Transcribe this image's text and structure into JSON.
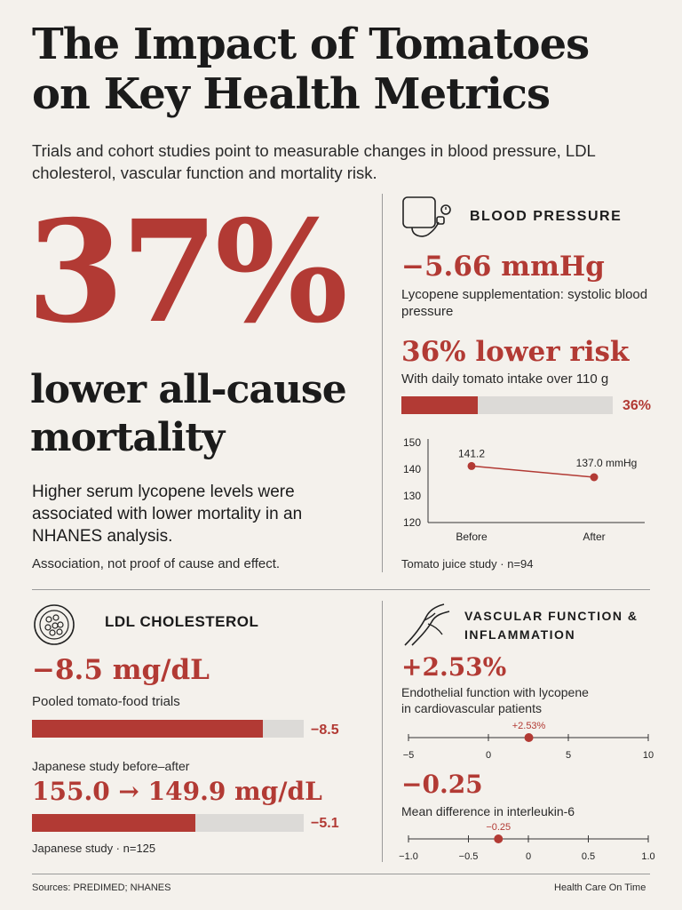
{
  "header": {
    "title_line1": "The Impact of Tomatoes",
    "title_line2": "on Key Health Metrics",
    "subtitle": "Trials and cohort studies point to measurable changes in blood pressure, LDL cholesterol, vascular function and mortality risk."
  },
  "mortality": {
    "big_value": "37%",
    "headline_line1": "lower all-cause",
    "headline_line2": "mortality",
    "description": "Higher serum lycopene levels were associated with lower mortality in an NHANES analysis.",
    "caveat": "Association, not proof of cause and effect."
  },
  "blood_pressure": {
    "heading": "BLOOD PRESSURE",
    "stat1": "−5.66 mmHg",
    "stat1_desc": "Lycopene supplementation: systolic blood pressure",
    "stat2": "36% lower risk",
    "stat2_desc": "With daily tomato intake over 110 g",
    "risk_bar": {
      "value": 36,
      "max": 100,
      "label": "36%"
    },
    "footnote": "Tomato juice study · n=94"
  },
  "ldl": {
    "heading": "LDL CHOLESTEROL",
    "stat1": "−8.5 mg/dL",
    "stat1_desc": "Pooled tomato-food trials",
    "bar1": {
      "value": 8.5,
      "max": 10,
      "label": "−8.5"
    },
    "stat2_desc": "Japanese study before–after",
    "stat2": "155.0 → 149.9 mg/dL",
    "bar2": {
      "value": 5.1,
      "max": 8.5,
      "label": "−5.1"
    },
    "footnote": "Japanese study · n=125"
  },
  "vascular": {
    "heading_line1": "VASCULAR FUNCTION &",
    "heading_line2": "INFLAMMATION",
    "stat1": "+2.53%",
    "stat1_desc_line1": "Endothelial function with lycopene",
    "stat1_desc_line2": "in cardiovascular patients",
    "stat2": "−0.25",
    "stat2_desc": "Mean difference in interleukin-6"
  },
  "footer": {
    "sources": "Sources: PREDIMED; NHANES",
    "brand": "Health Care On Time"
  },
  "chart_data": [
    {
      "type": "line",
      "x": [
        "Before",
        "After"
      ],
      "series": [
        {
          "values": [
            141.2,
            137.0
          ]
        }
      ],
      "data_labels": [
        "141.2",
        "137.0 mmHg"
      ],
      "ylim": [
        120,
        150
      ],
      "yticks": [
        "120",
        "130",
        "140",
        "150"
      ],
      "color": "#b23a34"
    },
    {
      "type": "scatter",
      "x": [
        2.53
      ],
      "xlim": [
        -5,
        10
      ],
      "xticks": [
        "−5",
        "0",
        "5",
        "10"
      ],
      "data_label": "+2.53%",
      "color": "#b23a34"
    },
    {
      "type": "scatter",
      "x": [
        -0.25
      ],
      "xlim": [
        -1.0,
        1.0
      ],
      "xticks": [
        "−1.0",
        "−0.5",
        "0",
        "0.5",
        "1.0"
      ],
      "data_label": "−0.25",
      "color": "#b23a34"
    }
  ]
}
